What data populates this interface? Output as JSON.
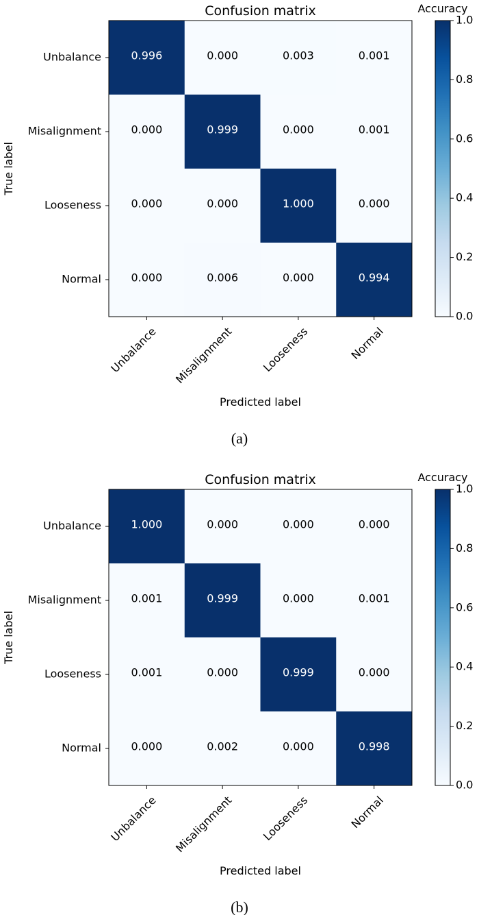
{
  "chart_data": [
    {
      "type": "heatmap",
      "panel_label": "(a)",
      "title": "Confusion matrix",
      "xlabel": "Predicted label",
      "ylabel": "True label",
      "x_categories": [
        "Unbalance",
        "Misalignment",
        "Looseness",
        "Normal"
      ],
      "y_categories": [
        "Unbalance",
        "Misalignment",
        "Looseness",
        "Normal"
      ],
      "values": [
        [
          "0.996",
          "0.000",
          "0.003",
          "0.001"
        ],
        [
          "0.000",
          "0.999",
          "0.000",
          "0.001"
        ],
        [
          "0.000",
          "0.000",
          "1.000",
          "0.000"
        ],
        [
          "0.000",
          "0.006",
          "0.000",
          "0.994"
        ]
      ],
      "colorbar": {
        "label": "Accuracy",
        "range": [
          0,
          1
        ],
        "ticks": [
          "0.0",
          "0.2",
          "0.4",
          "0.6",
          "0.8",
          "1.0"
        ]
      }
    },
    {
      "type": "heatmap",
      "panel_label": "(b)",
      "title": "Confusion matrix",
      "xlabel": "Predicted label",
      "ylabel": "True label",
      "x_categories": [
        "Unbalance",
        "Misalignment",
        "Looseness",
        "Normal"
      ],
      "y_categories": [
        "Unbalance",
        "Misalignment",
        "Looseness",
        "Normal"
      ],
      "values": [
        [
          "1.000",
          "0.000",
          "0.000",
          "0.000"
        ],
        [
          "0.001",
          "0.999",
          "0.000",
          "0.001"
        ],
        [
          "0.001",
          "0.000",
          "0.999",
          "0.000"
        ],
        [
          "0.000",
          "0.002",
          "0.000",
          "0.998"
        ]
      ],
      "colorbar": {
        "label": "Accuracy",
        "range": [
          0,
          1
        ],
        "ticks": [
          "0.0",
          "0.2",
          "0.4",
          "0.6",
          "0.8",
          "1.0"
        ]
      }
    }
  ],
  "colors": {
    "low": "#f7fbff",
    "high": "#08306b",
    "text_dark": "#000000",
    "text_light": "#ffffff"
  }
}
